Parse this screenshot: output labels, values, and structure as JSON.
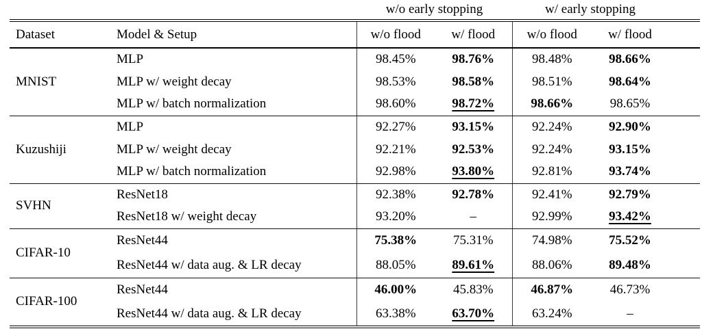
{
  "table": {
    "group_headers": [
      {
        "label": "w/o early stopping"
      },
      {
        "label": "w/ early stopping"
      }
    ],
    "column_headers": {
      "dataset": "Dataset",
      "model": "Model & Setup",
      "cols": [
        "w/o flood",
        "w/ flood",
        "w/o flood",
        "w/ flood"
      ]
    },
    "blocks": [
      {
        "dataset": "MNIST",
        "rows": [
          {
            "model": "MLP",
            "values": [
              {
                "text": "98.45%"
              },
              {
                "text": "98.76%",
                "bold": true
              },
              {
                "text": "98.48%"
              },
              {
                "text": "98.66%",
                "bold": true
              }
            ]
          },
          {
            "model": "MLP w/ weight decay",
            "values": [
              {
                "text": "98.53%"
              },
              {
                "text": "98.58%",
                "bold": true
              },
              {
                "text": "98.51%"
              },
              {
                "text": "98.64%",
                "bold": true
              }
            ]
          },
          {
            "model": "MLP w/ batch normalization",
            "values": [
              {
                "text": "98.60%"
              },
              {
                "text": "98.72%",
                "bold": true,
                "underline": true
              },
              {
                "text": "98.66%",
                "bold": true
              },
              {
                "text": "98.65%"
              }
            ]
          }
        ]
      },
      {
        "dataset": "Kuzushiji",
        "rows": [
          {
            "model": "MLP",
            "values": [
              {
                "text": "92.27%"
              },
              {
                "text": "93.15%",
                "bold": true
              },
              {
                "text": "92.24%"
              },
              {
                "text": "92.90%",
                "bold": true
              }
            ]
          },
          {
            "model": "MLP w/ weight decay",
            "values": [
              {
                "text": "92.21%"
              },
              {
                "text": "92.53%",
                "bold": true
              },
              {
                "text": "92.24%"
              },
              {
                "text": "93.15%",
                "bold": true
              }
            ]
          },
          {
            "model": "MLP w/ batch normalization",
            "values": [
              {
                "text": "92.98%"
              },
              {
                "text": "93.80%",
                "bold": true,
                "underline": true
              },
              {
                "text": "92.81%"
              },
              {
                "text": "93.74%",
                "bold": true
              }
            ]
          }
        ]
      },
      {
        "dataset": "SVHN",
        "rows": [
          {
            "model": "ResNet18",
            "values": [
              {
                "text": "92.38%"
              },
              {
                "text": "92.78%",
                "bold": true
              },
              {
                "text": "92.41%"
              },
              {
                "text": "92.79%",
                "bold": true
              }
            ]
          },
          {
            "model": "ResNet18 w/ weight decay",
            "values": [
              {
                "text": "93.20%"
              },
              {
                "text": "–"
              },
              {
                "text": "92.99%"
              },
              {
                "text": "93.42%",
                "bold": true,
                "underline": true
              }
            ]
          }
        ]
      },
      {
        "dataset": "CIFAR-10",
        "rows": [
          {
            "model": "ResNet44",
            "values": [
              {
                "text": "75.38%",
                "bold": true
              },
              {
                "text": "75.31%"
              },
              {
                "text": "74.98%"
              },
              {
                "text": "75.52%",
                "bold": true
              }
            ]
          },
          {
            "model": "ResNet44 w/ data aug. & LR decay",
            "values": [
              {
                "text": "88.05%"
              },
              {
                "text": "89.61%",
                "bold": true,
                "underline": true
              },
              {
                "text": "88.06%"
              },
              {
                "text": "89.48%",
                "bold": true
              }
            ]
          }
        ]
      },
      {
        "dataset": "CIFAR-100",
        "rows": [
          {
            "model": "ResNet44",
            "values": [
              {
                "text": "46.00%",
                "bold": true
              },
              {
                "text": "45.83%"
              },
              {
                "text": "46.87%",
                "bold": true
              },
              {
                "text": "46.73%"
              }
            ]
          },
          {
            "model": "ResNet44 w/ data aug. & LR decay",
            "values": [
              {
                "text": "63.38%"
              },
              {
                "text": "63.70%",
                "bold": true,
                "underline": true
              },
              {
                "text": "63.24%"
              },
              {
                "text": "–"
              }
            ]
          }
        ]
      }
    ],
    "colors": {
      "text": "#000000",
      "background": "#ffffff",
      "rule": "#000000"
    }
  }
}
